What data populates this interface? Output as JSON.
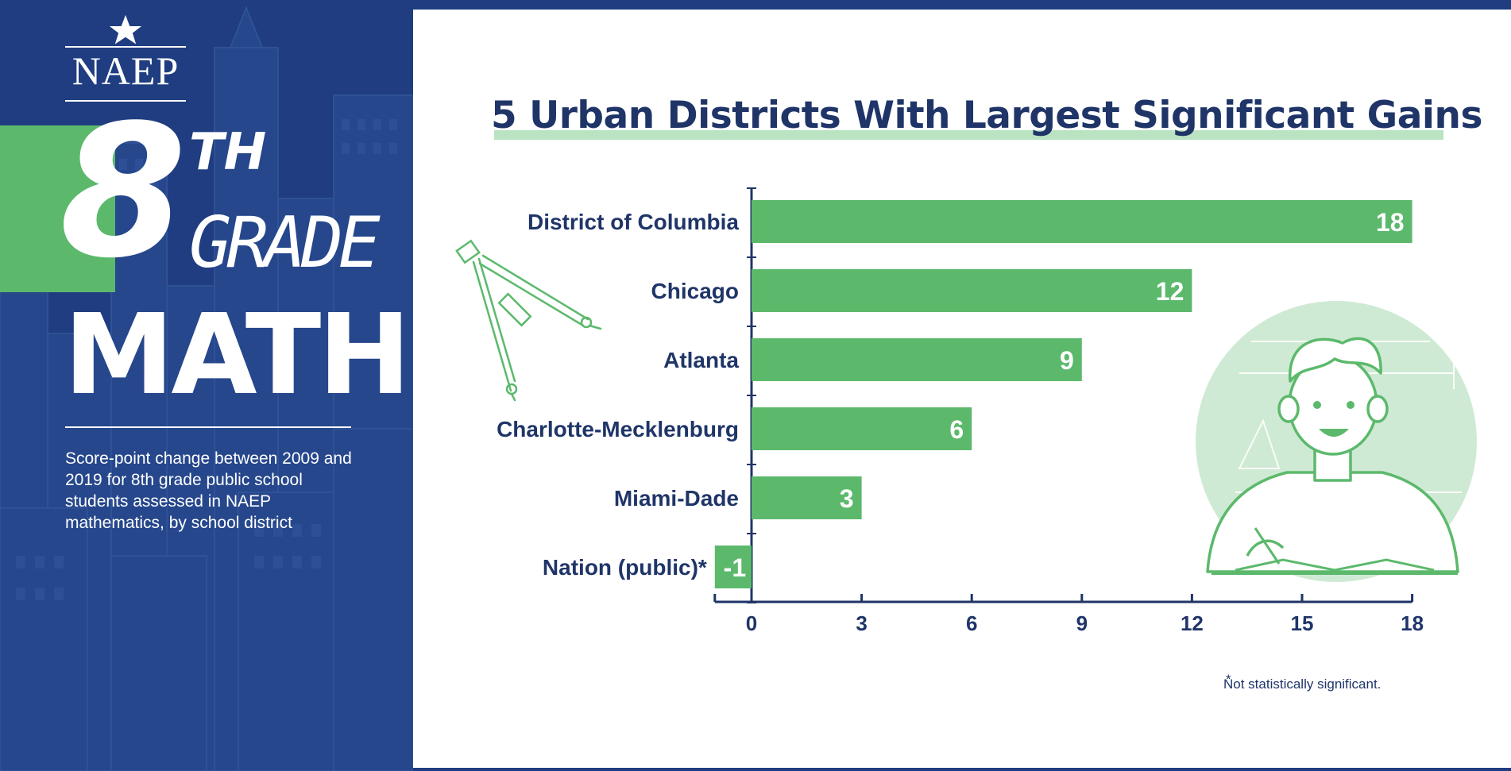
{
  "logo": {
    "text": "NAEP"
  },
  "headline": {
    "grade_number": "8",
    "grade_suffix": "TH",
    "grade_word": "GRADE",
    "subject": "MATH"
  },
  "description": "Score-point change between 2009 and 2019 for 8th grade public school students assessed in NAEP mathematics, by school district",
  "footnote": "Not statistically significant.",
  "footnote_star": "*",
  "colors": {
    "navy": "#1f3568",
    "panel": "#1f3d80",
    "green": "#5cb96c",
    "light_green": "#b9e3c1",
    "circle": "#cfead4"
  },
  "icons": [
    "star-icon",
    "compass-icon",
    "student-icon"
  ],
  "chart_data": {
    "type": "bar",
    "orientation": "horizontal",
    "title": "5 Urban Districts With Largest Significant Gains",
    "categories": [
      "District of Columbia",
      "Chicago",
      "Atlanta",
      "Charlotte-Mecklenburg",
      "Miami-Dade",
      "Nation (public)*"
    ],
    "values": [
      18,
      12,
      9,
      6,
      3,
      -1
    ],
    "value_labels": [
      "18",
      "12",
      "9",
      "6",
      "3",
      "-1"
    ],
    "xlim": [
      -1,
      18
    ],
    "xticks": [
      0,
      3,
      6,
      9,
      12,
      15,
      18
    ],
    "xlabel": "",
    "ylabel": "",
    "grid": false,
    "bar_color": "#5cb96c"
  }
}
